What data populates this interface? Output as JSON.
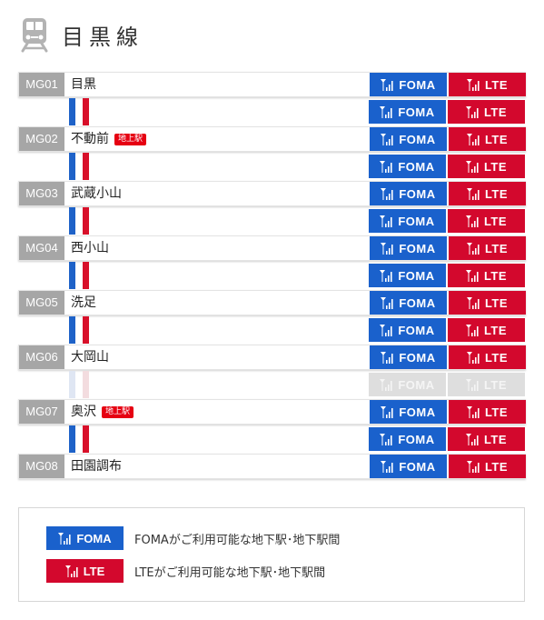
{
  "line_title": "目黒線",
  "icons": {
    "train": "train-icon",
    "signal": "signal-antenna-icon"
  },
  "colors": {
    "foma": "#1a61cc",
    "lte": "#d3082d",
    "code_bg": "#a6a6a6",
    "line_blue": "#1e62c8",
    "line_red": "#d8102a"
  },
  "badge_labels": {
    "foma": "FOMA",
    "lte": "LTE"
  },
  "stations": [
    {
      "code": "MG01",
      "name": "目黒",
      "tag": ""
    },
    {
      "code": "MG02",
      "name": "不動前",
      "tag": "地上駅"
    },
    {
      "code": "MG03",
      "name": "武蔵小山",
      "tag": ""
    },
    {
      "code": "MG04",
      "name": "西小山",
      "tag": ""
    },
    {
      "code": "MG05",
      "name": "洗足",
      "tag": ""
    },
    {
      "code": "MG06",
      "name": "大岡山",
      "tag": ""
    },
    {
      "code": "MG07",
      "name": "奥沢",
      "tag": "地上駅"
    },
    {
      "code": "MG08",
      "name": "田園調布",
      "tag": ""
    }
  ],
  "segments": [
    {
      "foma": true,
      "lte": true
    },
    {
      "foma": true,
      "lte": true
    },
    {
      "foma": true,
      "lte": true
    },
    {
      "foma": true,
      "lte": true
    },
    {
      "foma": true,
      "lte": true
    },
    {
      "foma": false,
      "lte": false
    },
    {
      "foma": true,
      "lte": true
    }
  ],
  "legend": {
    "foma_text": "FOMAがご利用可能な地下駅･地下駅間",
    "lte_text": "LTEがご利用可能な地下駅･地下駅間"
  }
}
